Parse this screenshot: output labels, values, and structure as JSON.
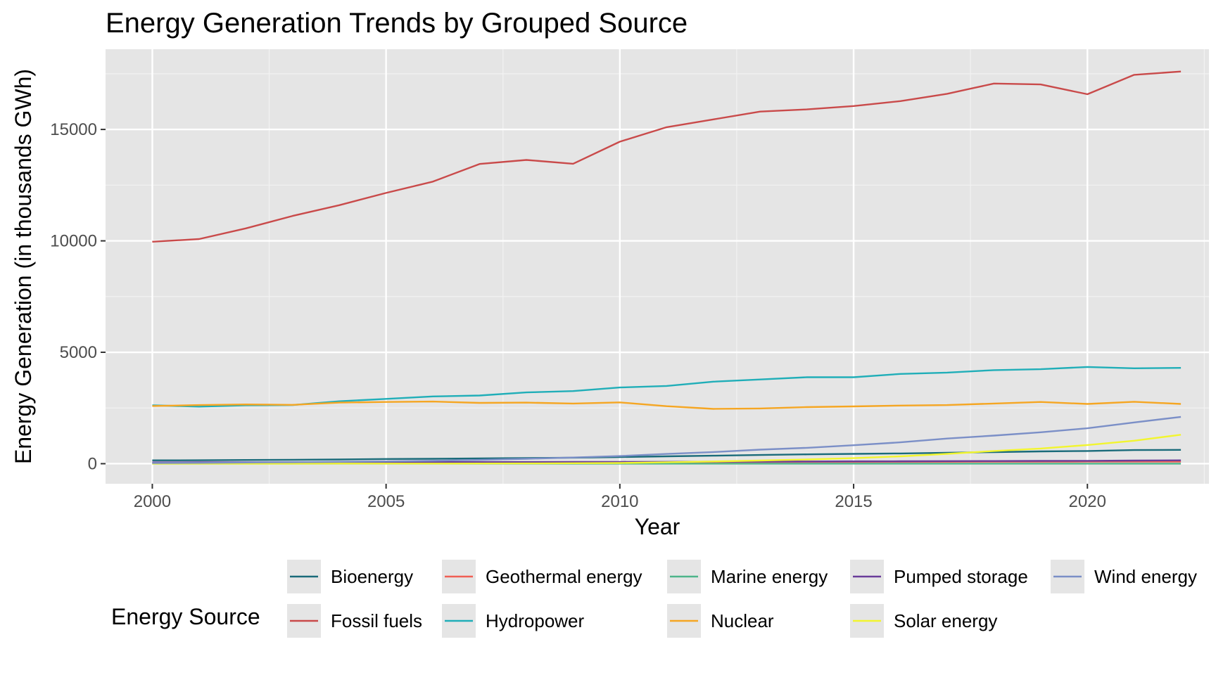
{
  "chart_data": {
    "type": "line",
    "title": "Energy Generation Trends by Grouped Source",
    "xlabel": "Year",
    "ylabel": "Energy Generation (in thousands GWh)",
    "xlim": [
      1999,
      2022.6
    ],
    "ylim": [
      -900,
      18600
    ],
    "x_ticks": [
      2000,
      2005,
      2010,
      2015,
      2020
    ],
    "x_tick_labels": [
      "2000",
      "2005",
      "2010",
      "2015",
      "2020"
    ],
    "y_ticks": [
      0,
      5000,
      10000,
      15000
    ],
    "y_tick_labels": [
      "0",
      "5000",
      "10000",
      "15000"
    ],
    "grid": true,
    "legend_title": "Energy Source",
    "legend_position": "bottom",
    "x": [
      2000,
      2001,
      2002,
      2003,
      2004,
      2005,
      2006,
      2007,
      2008,
      2009,
      2010,
      2011,
      2012,
      2013,
      2014,
      2015,
      2016,
      2017,
      2018,
      2019,
      2020,
      2021,
      2022
    ],
    "series": [
      {
        "name": "Bioenergy",
        "color": "#1a6b7a",
        "values": [
          150,
          155,
          165,
          175,
          190,
          210,
          220,
          240,
          255,
          270,
          300,
          330,
          360,
          390,
          420,
          440,
          460,
          490,
          520,
          550,
          570,
          610,
          620
        ]
      },
      {
        "name": "Fossil fuels",
        "color": "#c94a4a",
        "values": [
          9960,
          10080,
          10560,
          11120,
          11600,
          12150,
          12660,
          13450,
          13630,
          13460,
          14450,
          15100,
          15450,
          15800,
          15900,
          16050,
          16270,
          16600,
          17060,
          17020,
          16580,
          17450,
          17600
        ]
      },
      {
        "name": "Geothermal energy",
        "color": "#f05f55",
        "values": [
          50,
          52,
          53,
          55,
          56,
          58,
          60,
          62,
          64,
          66,
          68,
          69,
          70,
          71,
          75,
          78,
          81,
          84,
          87,
          89,
          92,
          93,
          95
        ]
      },
      {
        "name": "Hydropower",
        "color": "#20aeb8",
        "values": [
          2620,
          2560,
          2620,
          2630,
          2800,
          2910,
          3020,
          3060,
          3200,
          3260,
          3420,
          3490,
          3680,
          3780,
          3880,
          3880,
          4030,
          4090,
          4200,
          4240,
          4340,
          4280,
          4300
        ]
      },
      {
        "name": "Marine energy",
        "color": "#4db58a",
        "values": [
          1,
          1,
          1,
          1,
          1,
          1,
          1,
          1,
          1,
          1,
          1,
          1,
          1,
          1,
          1,
          1,
          1,
          1,
          1,
          1,
          1,
          1,
          1
        ]
      },
      {
        "name": "Nuclear",
        "color": "#f5a623",
        "values": [
          2590,
          2630,
          2660,
          2640,
          2740,
          2770,
          2790,
          2730,
          2740,
          2700,
          2750,
          2580,
          2460,
          2480,
          2540,
          2570,
          2610,
          2630,
          2700,
          2770,
          2680,
          2780,
          2680
        ]
      },
      {
        "name": "Pumped storage",
        "color": "#6a3d9a",
        "values": [
          60,
          62,
          64,
          66,
          68,
          70,
          72,
          74,
          76,
          78,
          80,
          84,
          90,
          95,
          100,
          105,
          110,
          115,
          120,
          125,
          130,
          140,
          150
        ]
      },
      {
        "name": "Solar energy",
        "color": "#f2f52f",
        "values": [
          1,
          2,
          3,
          4,
          5,
          5,
          6,
          8,
          12,
          20,
          32,
          64,
          100,
          140,
          190,
          250,
          330,
          440,
          570,
          680,
          840,
          1030,
          1300
        ]
      },
      {
        "name": "Wind energy",
        "color": "#7b8fc7",
        "values": [
          31,
          38,
          52,
          64,
          85,
          104,
          133,
          171,
          220,
          277,
          342,
          437,
          523,
          630,
          712,
          828,
          958,
          1130,
          1260,
          1410,
          1590,
          1850,
          2100
        ]
      }
    ]
  }
}
